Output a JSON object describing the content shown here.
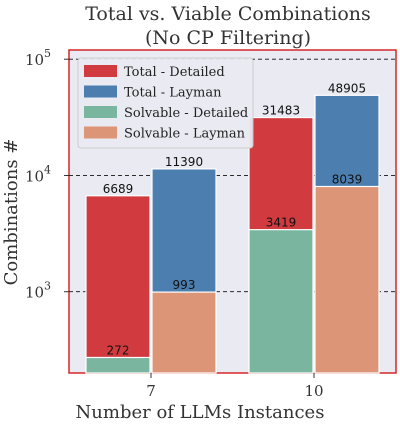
{
  "chart_data": {
    "type": "bar",
    "title": [
      "Total vs. Viable Combinations",
      "(No CP Filtering)"
    ],
    "xlabel": "Number of LLMs Instances",
    "ylabel": "Combinations #",
    "categories": [
      "7",
      "10"
    ],
    "yscale": "log",
    "ylim": [
      200,
      120000
    ],
    "yticks": [
      {
        "value": 1000,
        "base": "10",
        "exp": "3"
      },
      {
        "value": 10000,
        "base": "10",
        "exp": "4"
      },
      {
        "value": 100000,
        "base": "10",
        "exp": "5"
      }
    ],
    "grid": "horizontal dashed",
    "legend_position": "top-left",
    "series": [
      {
        "name": "Total - Detailed",
        "color": "#d13a3f",
        "values": [
          6689,
          31483
        ],
        "labels": [
          "6689",
          "31483"
        ]
      },
      {
        "name": "Total - Layman",
        "color": "#4c7fb0",
        "values": [
          11390,
          48905
        ],
        "labels": [
          "11390",
          "48905"
        ]
      },
      {
        "name": "Solvable - Detailed",
        "color": "#7ab5a0",
        "values": [
          272,
          3419
        ],
        "labels": [
          "272",
          "3419"
        ]
      },
      {
        "name": "Solvable - Layman",
        "color": "#dd9577",
        "values": [
          993,
          8039
        ],
        "labels": [
          "993",
          "8039"
        ]
      }
    ],
    "colors": {
      "plot_background": "#eaeaf2",
      "frame": "#d62728"
    }
  }
}
